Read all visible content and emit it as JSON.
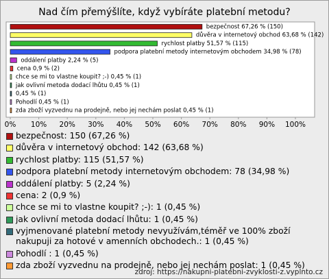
{
  "chart_data": {
    "type": "bar",
    "orientation": "horizontal",
    "title": "Nad čím přemýšlíte, když vybíráte platební metodu?",
    "categories": [
      "bezpečnost",
      "důvěra v internetový obchod",
      "rychlost platby",
      "podpora platební metody internetovým obchodem",
      "oddálení platby",
      "cena",
      "chce se mi to vlastne koupit? ;-)",
      "jak ovlivní metoda dodací lhůtu",
      "vyjmenované platební metody nevyužívám,téměř ve 100% zboží nakupuji za hotové v amenních obchodech.",
      "Pohodlí",
      "zda zboží vyzvednu na prodejně, nebo jej nechám poslat"
    ],
    "values": [
      67.26,
      63.68,
      51.57,
      34.98,
      2.24,
      0.9,
      0.45,
      0.45,
      0.45,
      0.45,
      0.45
    ],
    "value_labels": [
      "bezpečnost 67,26 % (150)",
      "důvěra v internetový obchod 63,68 % (142)",
      "rychlost platby 51,57 % (115)",
      "podpora platební metody internetovým obchodem 34,98 % (78)",
      "oddálení platby 2,24 % (5)",
      "cena 0,9 % (2)",
      "chce se mi to vlastne koupit? ;-) 0,45 % (1)",
      "jak ovlivní metoda dodací lhůtu 0,45 % (1)",
      "0,45 % (1)",
      "Pohodlí  0,45 % (1)",
      "zda zboží vyzvednu na prodejně, nebo jej nechám poslat 0,45 % (1)"
    ],
    "legend_labels": [
      "bezpečnost: 150 (67,26 %)",
      "důvěra v internetový obchod: 142 (63,68 %)",
      "rychlost platby: 115 (51,57 %)",
      "podpora platební metody internetovým obchodem: 78 (34,98 %)",
      "oddálení platby: 5 (2,24 %)",
      "cena: 2 (0,9 %)",
      "chce se mi to vlastne koupit? ;-): 1 (0,45 %)",
      "jak ovlivní metoda dodací lhůtu: 1 (0,45 %)",
      "vyjmenované platební metody nevyužívám,téměř ve 100% zboží nakupuji za hotové v amenních obchodech.: 1 (0,45 %)",
      "Pohodlí : 1 (0,45 %)",
      "zda zboží vyzvednu na prodejně, nebo jej nechám poslat: 1 (0,45 %)"
    ],
    "colors": [
      "#b01010",
      "#ffff66",
      "#33bb33",
      "#3355ee",
      "#bb33cc",
      "#ee3333",
      "#ccff99",
      "#2f9a5a",
      "#336b7a",
      "#cc88dd",
      "#ff9933"
    ],
    "xlim": [
      0,
      100
    ],
    "xticks": [
      {
        "value": 0,
        "label": "0%"
      },
      {
        "value": 10,
        "label": "10%"
      },
      {
        "value": 20,
        "label": "20%"
      },
      {
        "value": 30,
        "label": "30%"
      },
      {
        "value": 40,
        "label": "40%"
      },
      {
        "value": 50,
        "label": "50%"
      },
      {
        "value": 60,
        "label": "60%"
      },
      {
        "value": 70,
        "label": "70%"
      },
      {
        "value": 80,
        "label": "80%"
      },
      {
        "value": 90,
        "label": "90%"
      },
      {
        "value": 100,
        "label": "100%"
      }
    ],
    "source": "zdroj: https://nakupni-platebni-zvyklosti-z.vyplnto.cz"
  }
}
